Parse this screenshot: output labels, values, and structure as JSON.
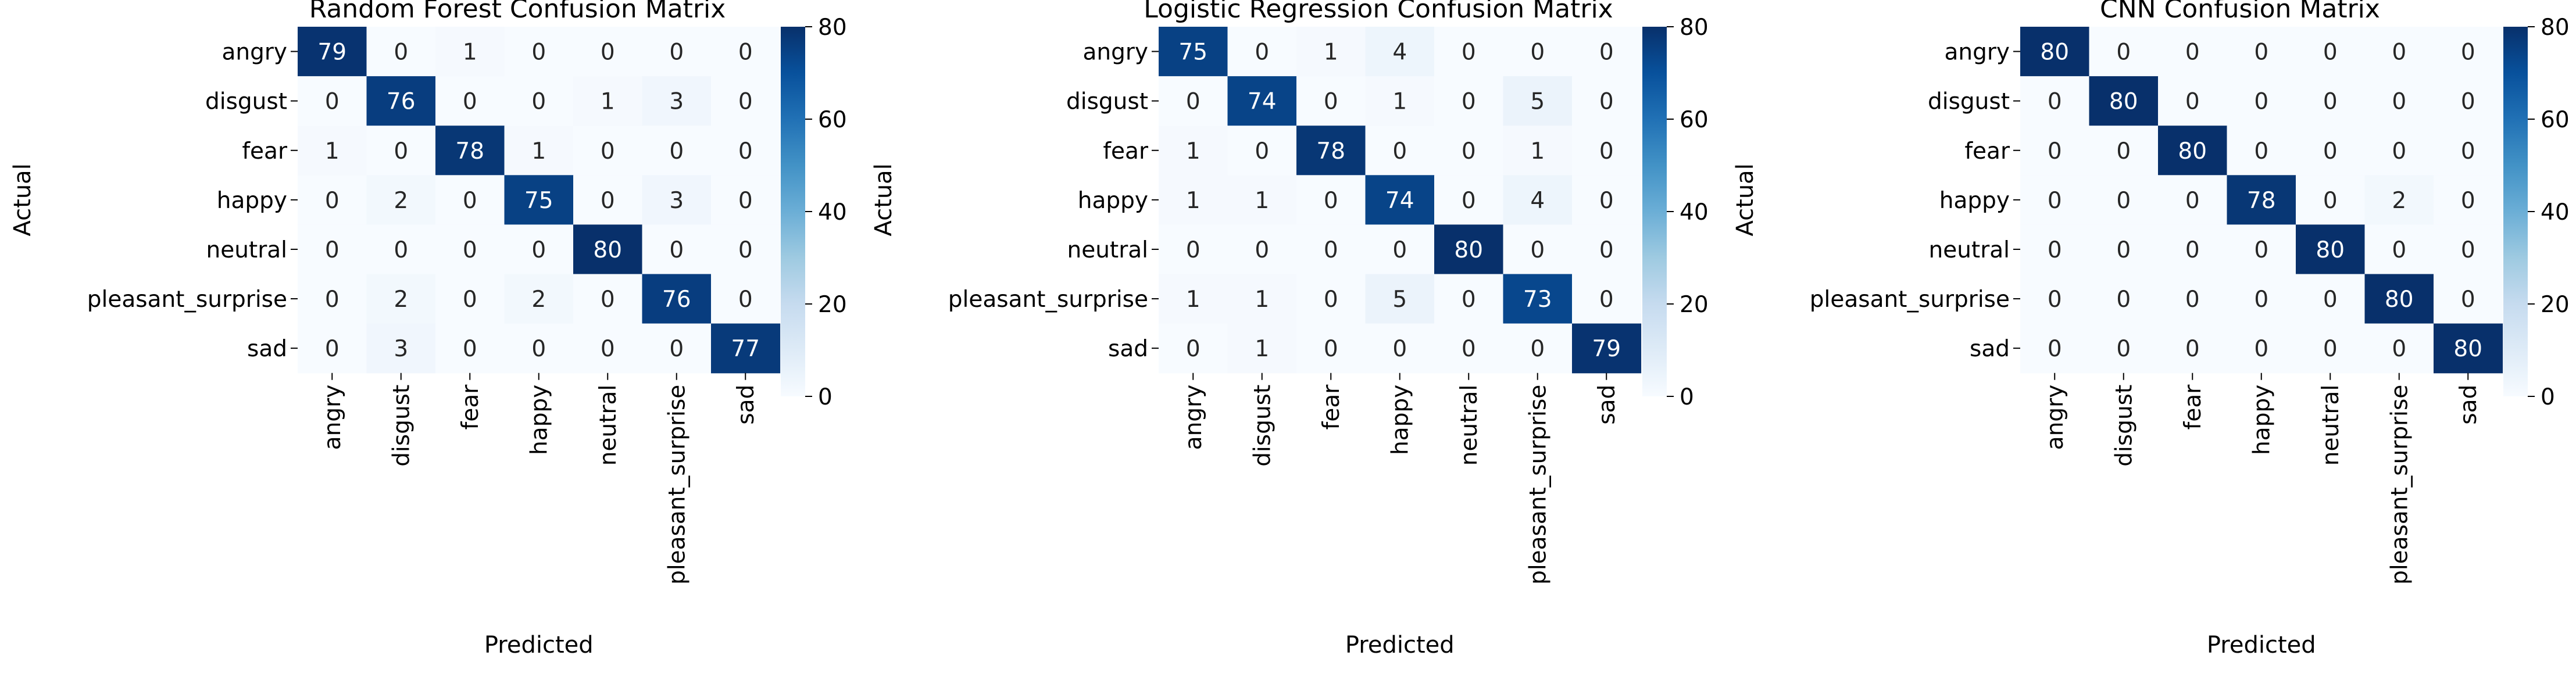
{
  "chart_data": [
    {
      "type": "heatmap",
      "title": "Random Forest Confusion Matrix",
      "xlabel": "Predicted",
      "ylabel": "Actual",
      "x_categories": [
        "angry",
        "disgust",
        "fear",
        "happy",
        "neutral",
        "pleasant_surprise",
        "sad"
      ],
      "y_categories": [
        "angry",
        "disgust",
        "fear",
        "happy",
        "neutral",
        "pleasant_surprise",
        "sad"
      ],
      "values": [
        [
          79,
          0,
          1,
          0,
          0,
          0,
          0
        ],
        [
          0,
          76,
          0,
          0,
          1,
          3,
          0
        ],
        [
          1,
          0,
          78,
          1,
          0,
          0,
          0
        ],
        [
          0,
          2,
          0,
          75,
          0,
          3,
          0
        ],
        [
          0,
          0,
          0,
          0,
          80,
          0,
          0
        ],
        [
          0,
          2,
          0,
          2,
          0,
          76,
          0
        ],
        [
          0,
          3,
          0,
          0,
          0,
          0,
          77
        ]
      ],
      "colorbar": {
        "min": 0,
        "max": 80,
        "ticks": [
          0,
          20,
          40,
          60,
          80
        ]
      },
      "colormap": "Blues"
    },
    {
      "type": "heatmap",
      "title": "Logistic Regression Confusion Matrix",
      "xlabel": "Predicted",
      "ylabel": "Actual",
      "x_categories": [
        "angry",
        "disgust",
        "fear",
        "happy",
        "neutral",
        "pleasant_surprise",
        "sad"
      ],
      "y_categories": [
        "angry",
        "disgust",
        "fear",
        "happy",
        "neutral",
        "pleasant_surprise",
        "sad"
      ],
      "values": [
        [
          75,
          0,
          1,
          4,
          0,
          0,
          0
        ],
        [
          0,
          74,
          0,
          1,
          0,
          5,
          0
        ],
        [
          1,
          0,
          78,
          0,
          0,
          1,
          0
        ],
        [
          1,
          1,
          0,
          74,
          0,
          4,
          0
        ],
        [
          0,
          0,
          0,
          0,
          80,
          0,
          0
        ],
        [
          1,
          1,
          0,
          5,
          0,
          73,
          0
        ],
        [
          0,
          1,
          0,
          0,
          0,
          0,
          79
        ]
      ],
      "colorbar": {
        "min": 0,
        "max": 80,
        "ticks": [
          0,
          20,
          40,
          60,
          80
        ]
      },
      "colormap": "Blues"
    },
    {
      "type": "heatmap",
      "title": "CNN Confusion Matrix",
      "xlabel": "Predicted",
      "ylabel": "Actual",
      "x_categories": [
        "angry",
        "disgust",
        "fear",
        "happy",
        "neutral",
        "pleasant_surprise",
        "sad"
      ],
      "y_categories": [
        "angry",
        "disgust",
        "fear",
        "happy",
        "neutral",
        "pleasant_surprise",
        "sad"
      ],
      "values": [
        [
          80,
          0,
          0,
          0,
          0,
          0,
          0
        ],
        [
          0,
          80,
          0,
          0,
          0,
          0,
          0
        ],
        [
          0,
          0,
          80,
          0,
          0,
          0,
          0
        ],
        [
          0,
          0,
          0,
          78,
          0,
          2,
          0
        ],
        [
          0,
          0,
          0,
          0,
          80,
          0,
          0
        ],
        [
          0,
          0,
          0,
          0,
          0,
          80,
          0
        ],
        [
          0,
          0,
          0,
          0,
          0,
          0,
          80
        ]
      ],
      "colorbar": {
        "min": 0,
        "max": 80,
        "ticks": [
          0,
          20,
          40,
          60,
          80
        ]
      },
      "colormap": "Blues"
    }
  ],
  "colors": {
    "text_dark": "#262626",
    "text_light": "#ffffff",
    "axis": "#000000"
  }
}
